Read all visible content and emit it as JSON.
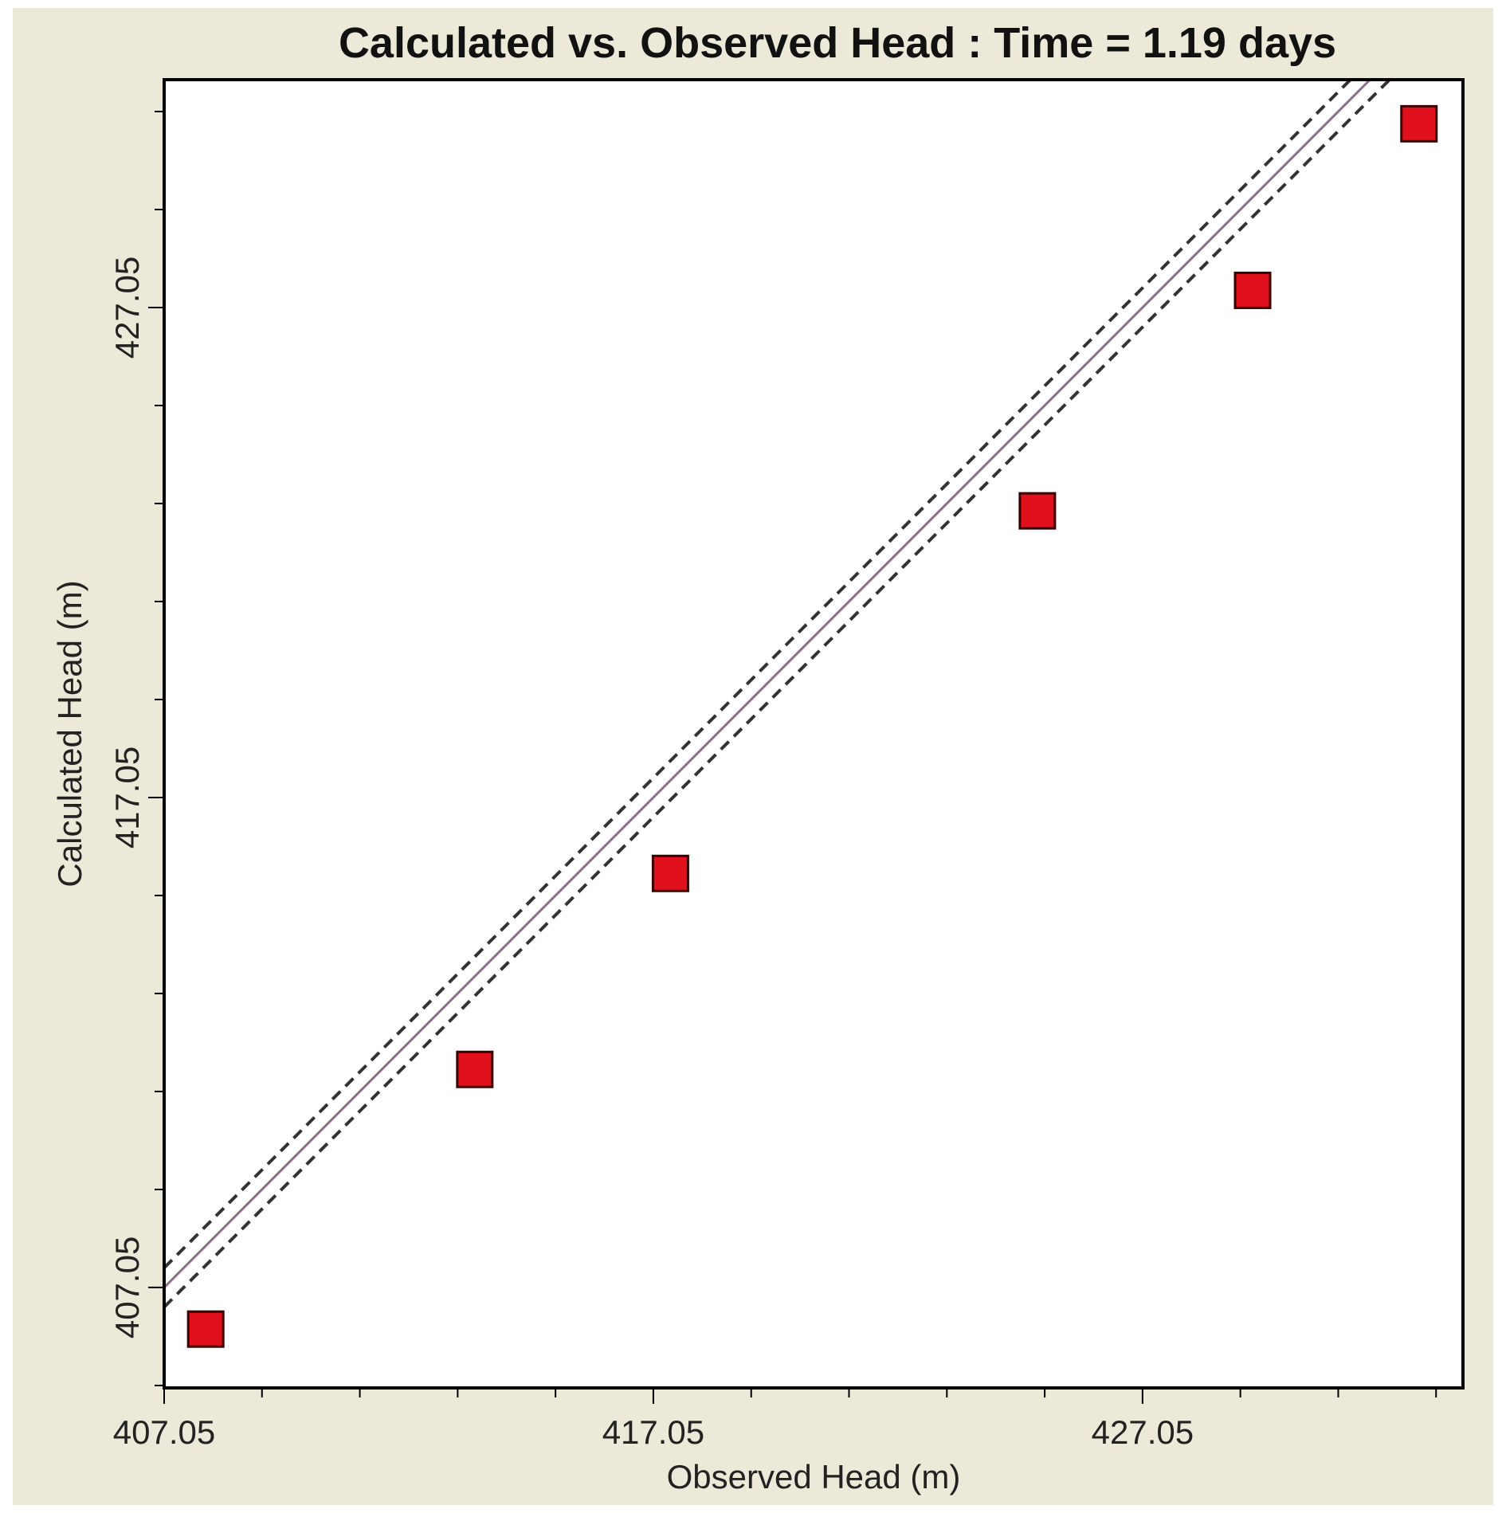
{
  "chart_data": {
    "type": "scatter",
    "title": "Calculated vs. Observed Head : Time = 1.19 days",
    "xlabel": "Observed Head (m)",
    "ylabel": "Calculated Head (m)",
    "xlim": [
      407.05,
      433.6
    ],
    "ylim": [
      405.0,
      431.7
    ],
    "x_ticks": [
      407.05,
      417.05,
      427.05
    ],
    "x_tick_labels": [
      "407.05",
      "417.05",
      "427.05"
    ],
    "y_ticks": [
      407.05,
      417.05,
      427.05
    ],
    "y_tick_labels": [
      "407.05",
      "417.05",
      "427.05"
    ],
    "minor_tick_step": 2,
    "grid": false,
    "reference_line": {
      "name": "1:1 line",
      "slope": 1,
      "intercept": 0,
      "color": "#8b6f8b"
    },
    "confidence_lines": {
      "offset": 0.4,
      "style": "dashed",
      "color": "#333333"
    },
    "series": [
      {
        "name": "Observations",
        "marker": "square",
        "color": "#e0101c",
        "points": [
          {
            "x": 407.9,
            "y": 406.2
          },
          {
            "x": 413.4,
            "y": 411.5
          },
          {
            "x": 417.4,
            "y": 415.5
          },
          {
            "x": 424.9,
            "y": 422.9
          },
          {
            "x": 429.3,
            "y": 427.4
          },
          {
            "x": 432.7,
            "y": 430.8
          }
        ]
      }
    ]
  }
}
